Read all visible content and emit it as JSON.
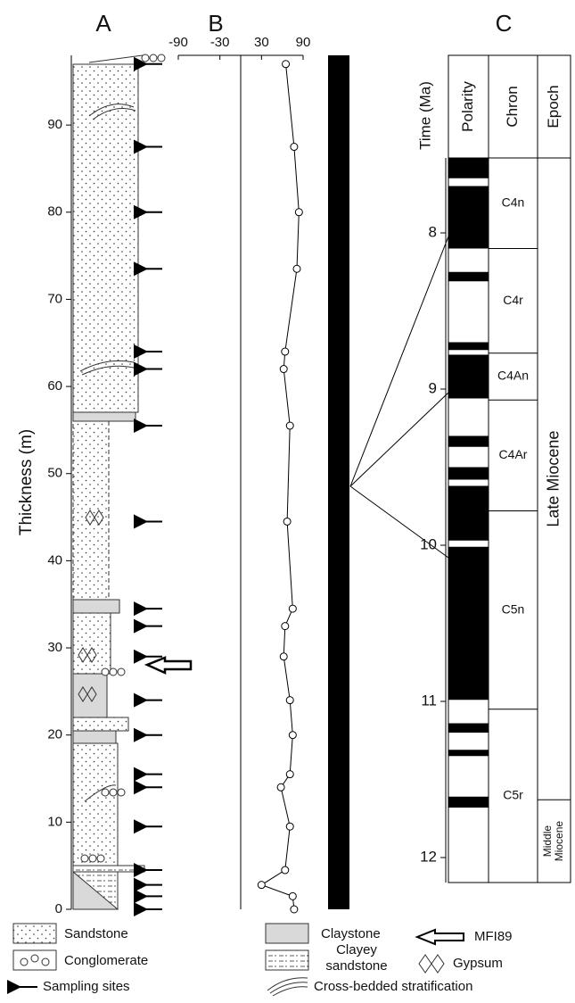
{
  "panel_labels": [
    "A",
    "B",
    "C"
  ],
  "chart_data": {
    "type": "scatter",
    "y_label": "Thickness (m)",
    "x": [
      65,
      77,
      84,
      81,
      64,
      62,
      71,
      67,
      75,
      64,
      62,
      71,
      75,
      71,
      58,
      71,
      64,
      30,
      75,
      77
    ],
    "y": [
      97,
      87.5,
      80,
      73.5,
      64,
      62,
      55.5,
      44.5,
      34.5,
      32.5,
      29,
      24,
      20,
      15.5,
      14,
      9.5,
      4.5,
      2.8,
      1.5,
      0
    ],
    "xlim": [
      -90,
      90
    ],
    "xticks": [
      -90,
      -30,
      30,
      90
    ],
    "ylim": [
      0,
      98
    ],
    "yticks": [
      0,
      10,
      20,
      30,
      40,
      50,
      60,
      70,
      80,
      90
    ]
  },
  "timescale": {
    "axis_label": "Time (Ma)",
    "lim": [
      7.52,
      12.16
    ],
    "ticks": [
      8,
      9,
      10,
      11,
      12
    ],
    "headers": [
      "Polarity",
      "Chron",
      "Epoch"
    ],
    "normal_polarity": [
      [
        7.52,
        7.65
      ],
      [
        7.7,
        8.1
      ],
      [
        8.25,
        8.31
      ],
      [
        8.7,
        8.75
      ],
      [
        8.78,
        9.06
      ],
      [
        9.3,
        9.37
      ],
      [
        9.5,
        9.58
      ],
      [
        9.62,
        9.97
      ],
      [
        10.01,
        10.99
      ],
      [
        11.14,
        11.2
      ],
      [
        11.31,
        11.35
      ],
      [
        11.61,
        11.68
      ]
    ],
    "chrons": [
      {
        "name": "C4n",
        "start": 7.52,
        "end": 8.1
      },
      {
        "name": "C4r",
        "start": 8.1,
        "end": 8.77
      },
      {
        "name": "C4An",
        "start": 8.77,
        "end": 9.07
      },
      {
        "name": "C4Ar",
        "start": 9.07,
        "end": 9.78
      },
      {
        "name": "C5n",
        "start": 9.78,
        "end": 11.05
      },
      {
        "name": "C5r",
        "start": 11.05,
        "end": 12.16
      }
    ],
    "epochs": [
      {
        "lines": [
          "Late Miocene"
        ],
        "start": 7.52,
        "end": 11.63
      },
      {
        "lines": [
          "Middle",
          "Miocene"
        ],
        "start": 11.63,
        "end": 12.16
      }
    ]
  },
  "legend": {
    "sandstone": "Sandstone",
    "claystone": "Claystone",
    "mfi": "MFI89",
    "conglomerate": "Conglomerate",
    "clayey": [
      "Clayey",
      "sandstone"
    ],
    "gypsum": "Gypsum",
    "sampling": "Sampling sites",
    "cross": "Cross-bedded stratification"
  }
}
